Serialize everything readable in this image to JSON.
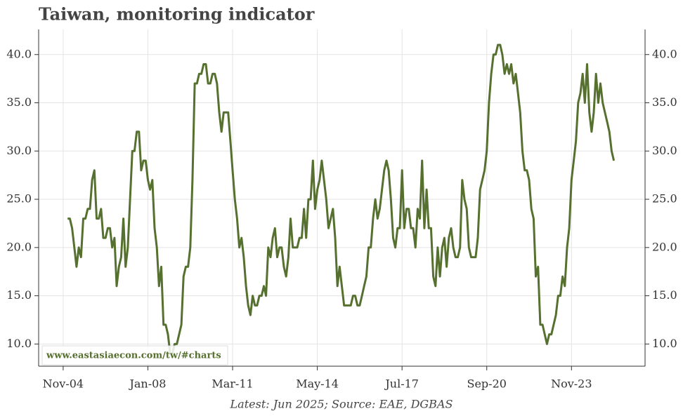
{
  "chart_data": {
    "type": "line",
    "title": "Taiwan, monitoring indicator",
    "source": "Latest: Jun 2025; Source: EAE, DGBAS",
    "watermark": "www.eastasiaecon.com/tw/#charts",
    "x": [
      "2005-01",
      "2005-02",
      "2005-03",
      "2005-04",
      "2005-05",
      "2005-06",
      "2005-07",
      "2005-08",
      "2005-09",
      "2005-10",
      "2005-11",
      "2005-12",
      "2006-01",
      "2006-02",
      "2006-03",
      "2006-04",
      "2006-05",
      "2006-06",
      "2006-07",
      "2006-08",
      "2006-09",
      "2006-10",
      "2006-11",
      "2006-12",
      "2007-01",
      "2007-02",
      "2007-03",
      "2007-04",
      "2007-05",
      "2007-06",
      "2007-07",
      "2007-08",
      "2007-09",
      "2007-10",
      "2007-11",
      "2007-12",
      "2008-01",
      "2008-02",
      "2008-03",
      "2008-04",
      "2008-05",
      "2008-06",
      "2008-07",
      "2008-08",
      "2008-09",
      "2008-10",
      "2008-11",
      "2008-12",
      "2009-01",
      "2009-02",
      "2009-03",
      "2009-04",
      "2009-05",
      "2009-06",
      "2009-07",
      "2009-08",
      "2009-09",
      "2009-10",
      "2009-11",
      "2009-12",
      "2010-01",
      "2010-02",
      "2010-03",
      "2010-04",
      "2010-05",
      "2010-06",
      "2010-07",
      "2010-08",
      "2010-09",
      "2010-10",
      "2010-11",
      "2010-12",
      "2011-01",
      "2011-02",
      "2011-03",
      "2011-04",
      "2011-05",
      "2011-06",
      "2011-07",
      "2011-08",
      "2011-09",
      "2011-10",
      "2011-11",
      "2011-12",
      "2012-01",
      "2012-02",
      "2012-03",
      "2012-04",
      "2012-05",
      "2012-06",
      "2012-07",
      "2012-08",
      "2012-09",
      "2012-10",
      "2012-11",
      "2012-12",
      "2013-01",
      "2013-02",
      "2013-03",
      "2013-04",
      "2013-05",
      "2013-06",
      "2013-07",
      "2013-08",
      "2013-09",
      "2013-10",
      "2013-11",
      "2013-12",
      "2014-01",
      "2014-02",
      "2014-03",
      "2014-04",
      "2014-05",
      "2014-06",
      "2014-07",
      "2014-08",
      "2014-09",
      "2014-10",
      "2014-11",
      "2014-12",
      "2015-01",
      "2015-02",
      "2015-03",
      "2015-04",
      "2015-05",
      "2015-06",
      "2015-07",
      "2015-08",
      "2015-09",
      "2015-10",
      "2015-11",
      "2015-12",
      "2016-01",
      "2016-02",
      "2016-03",
      "2016-04",
      "2016-05",
      "2016-06",
      "2016-07",
      "2016-08",
      "2016-09",
      "2016-10",
      "2016-11",
      "2016-12",
      "2017-01",
      "2017-02",
      "2017-03",
      "2017-04",
      "2017-05",
      "2017-06",
      "2017-07",
      "2017-08",
      "2017-09",
      "2017-10",
      "2017-11",
      "2017-12",
      "2018-01",
      "2018-02",
      "2018-03",
      "2018-04",
      "2018-05",
      "2018-06",
      "2018-07",
      "2018-08",
      "2018-09",
      "2018-10",
      "2018-11",
      "2018-12",
      "2019-01",
      "2019-02",
      "2019-03",
      "2019-04",
      "2019-05",
      "2019-06",
      "2019-07",
      "2019-08",
      "2019-09",
      "2019-10",
      "2019-11",
      "2019-12",
      "2020-01",
      "2020-02",
      "2020-03",
      "2020-04",
      "2020-05",
      "2020-06",
      "2020-07",
      "2020-08",
      "2020-09",
      "2020-10",
      "2020-11",
      "2020-12",
      "2021-01",
      "2021-02",
      "2021-03",
      "2021-04",
      "2021-05",
      "2021-06",
      "2021-07",
      "2021-08",
      "2021-09",
      "2021-10",
      "2021-11",
      "2021-12",
      "2022-01",
      "2022-02",
      "2022-03",
      "2022-04",
      "2022-05",
      "2022-06",
      "2022-07",
      "2022-08",
      "2022-09",
      "2022-10",
      "2022-11",
      "2022-12",
      "2023-01",
      "2023-02",
      "2023-03",
      "2023-04",
      "2023-05",
      "2023-06",
      "2023-07",
      "2023-08",
      "2023-09",
      "2023-10",
      "2023-11",
      "2023-12",
      "2024-01",
      "2024-02",
      "2024-03",
      "2024-04",
      "2024-05",
      "2024-06",
      "2024-07",
      "2024-08",
      "2024-09",
      "2024-10",
      "2024-11",
      "2024-12",
      "2025-01",
      "2025-02",
      "2025-03",
      "2025-04",
      "2025-05",
      "2025-06"
    ],
    "series": [
      {
        "name": "Monitoring indicator",
        "color": "#56702f",
        "values": [
          23,
          23,
          22,
          20,
          18,
          20,
          19,
          23,
          23,
          24,
          24,
          27,
          28,
          23,
          23,
          24,
          21,
          21,
          22,
          22,
          20,
          21,
          16,
          18,
          19,
          23,
          18,
          20,
          25,
          30,
          30,
          32,
          32,
          28,
          29,
          29,
          27,
          26,
          27,
          22,
          20,
          16,
          18,
          12,
          12,
          11,
          9,
          9,
          10,
          10,
          11,
          12,
          17,
          18,
          18,
          20,
          27,
          37,
          37,
          38,
          38,
          39,
          39,
          37,
          37,
          38,
          38,
          37,
          34,
          32,
          34,
          34,
          34,
          31,
          28,
          25,
          23,
          20,
          21,
          19,
          16,
          14,
          13,
          15,
          14,
          14,
          15,
          15,
          16,
          15,
          20,
          19,
          21,
          22,
          19,
          20,
          20,
          18,
          17,
          19,
          23,
          20,
          20,
          20,
          21,
          21,
          24,
          21,
          25,
          25,
          29,
          24,
          26,
          27,
          29,
          27,
          25,
          22,
          23,
          24,
          21,
          16,
          18,
          16,
          14,
          14,
          14,
          14,
          15,
          15,
          14,
          14,
          15,
          16,
          17,
          20,
          20,
          23,
          25,
          23,
          24,
          26,
          28,
          29,
          28,
          25,
          21,
          20,
          22,
          22,
          28,
          22,
          24,
          24,
          22,
          22,
          20,
          24,
          23,
          29,
          22,
          26,
          22,
          22,
          17,
          16,
          20,
          17,
          20,
          21,
          18,
          21,
          22,
          20,
          19,
          19,
          20,
          27,
          25,
          24,
          20,
          19,
          19,
          19,
          21,
          26,
          27,
          28,
          30,
          35,
          38,
          40,
          40,
          41,
          41,
          40,
          38,
          39,
          38,
          39,
          37,
          38,
          36,
          34,
          30,
          28,
          28,
          27,
          24,
          23,
          17,
          18,
          12,
          12,
          11,
          10,
          11,
          11,
          12,
          13,
          15,
          15,
          17,
          16,
          20,
          22,
          27,
          29,
          31,
          35,
          36,
          38,
          35,
          39,
          34,
          32,
          34,
          38,
          35,
          37,
          35,
          34,
          33,
          32,
          30,
          29
        ]
      }
    ],
    "xlim": [
      "2003-12",
      "2026-08"
    ],
    "xticks": [
      {
        "value": "2004-11",
        "label": "Nov-04"
      },
      {
        "value": "2008-01",
        "label": "Jan-08"
      },
      {
        "value": "2011-03",
        "label": "Mar-11"
      },
      {
        "value": "2014-05",
        "label": "May-14"
      },
      {
        "value": "2017-07",
        "label": "Jul-17"
      },
      {
        "value": "2020-09",
        "label": "Sep-20"
      },
      {
        "value": "2023-11",
        "label": "Nov-23"
      }
    ],
    "ylim": [
      7.7,
      42.6
    ],
    "yticks": [
      {
        "value": 10,
        "label": "10.0"
      },
      {
        "value": 15,
        "label": "15.0"
      },
      {
        "value": 20,
        "label": "20.0"
      },
      {
        "value": 25,
        "label": "25.0"
      },
      {
        "value": 30,
        "label": "30.0"
      },
      {
        "value": 35,
        "label": "35.0"
      },
      {
        "value": 40,
        "label": "40.0"
      }
    ],
    "grid": true
  }
}
